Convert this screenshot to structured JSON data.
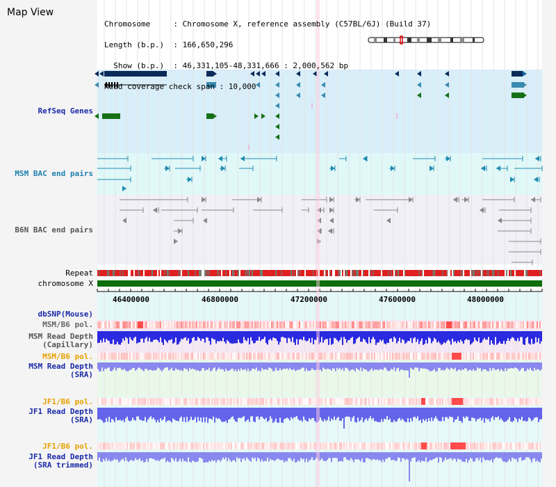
{
  "header": {
    "title": "Map View",
    "info_lines": [
      "Chromosome     : Chromosome X, reference assembly (C57BL/6J) (Build 37)",
      "Length (b.p.)  : 166,650,296",
      "  Show (b.p.)  : 46,331,105-48,331,666 : 2,000,562 bp",
      "Read coverage check span : 10,000"
    ]
  },
  "tracks": {
    "refseq": "RefSeq Genes",
    "msm_bac": "MSM BAC end pairs",
    "b6n_bac": "B6N BAC end pairs",
    "repeat": "Repeat",
    "chromosome": "chromosome X",
    "dbsnp": "dbSNP(Mouse)",
    "msm_b6_pol_1": "MSM/B6 pol.",
    "msm_depth_cap": "MSM Read Depth\n(Capillary)",
    "msm_b6_pol_2": "MSM/B6 pol.",
    "msm_depth_sra": "MSM Read Depth\n(SRA)",
    "jf1_b6_pol_1": "JF1/B6 pol.",
    "jf1_depth_sra": "JF1 Read Depth\n(SRA)",
    "jf1_b6_pol_2": "JF1/B6 pol.",
    "jf1_depth_trim": "JF1 Read Depth\n(SRA trimmed)"
  },
  "axis": {
    "ticks": [
      "46400000",
      "46800000",
      "47200000",
      "47600000",
      "48000000"
    ]
  },
  "colors": {
    "refseq_bg": "#d8eef8",
    "msm_bg": "#e0f8f8",
    "b6n_bg": "#eeeef4",
    "gene_dark": "#0a2a5a",
    "gene_mid": "#3a8ab0",
    "gene_green": "#157015",
    "chrom_green": "#0b6e0b",
    "pol_red": "#ff6666",
    "depth_blue": "#2a2ae0",
    "depth_light": "#8888ee"
  }
}
